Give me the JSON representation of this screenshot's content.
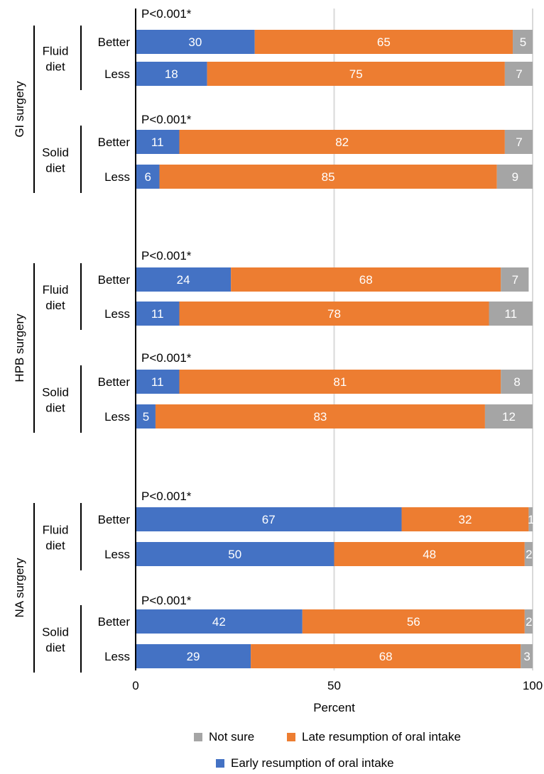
{
  "chart_data": {
    "type": "bar",
    "orientation": "horizontal",
    "stacked": true,
    "xlabel": "Percent",
    "xlim": [
      0,
      100
    ],
    "xticks": [
      "0",
      "50",
      "100"
    ],
    "grid": true,
    "legend_position": "bottom",
    "series": [
      {
        "key": "early",
        "name": "Early resumption of oral intake",
        "color": "#4472C4"
      },
      {
        "key": "late",
        "name": "Late resumption of oral intake",
        "color": "#ED7D31"
      },
      {
        "key": "notsure",
        "name": "Not sure",
        "color": "#A5A5A5"
      }
    ],
    "legend_rows": [
      [
        "notsure",
        "late"
      ],
      [
        "early"
      ]
    ],
    "groups": [
      {
        "label": "GI surgery",
        "subgroups": [
          {
            "label": [
              "Fluid",
              "diet"
            ],
            "pvalue": "P<0.001*",
            "bars": [
              {
                "label": "Better",
                "values": {
                  "early": 30,
                  "late": 65,
                  "notsure": 5
                }
              },
              {
                "label": "Less",
                "values": {
                  "early": 18,
                  "late": 75,
                  "notsure": 7
                }
              }
            ]
          },
          {
            "label": [
              "Solid",
              "diet"
            ],
            "pvalue": "P<0.001*",
            "bars": [
              {
                "label": "Better",
                "values": {
                  "early": 11,
                  "late": 82,
                  "notsure": 7
                }
              },
              {
                "label": "Less",
                "values": {
                  "early": 6,
                  "late": 85,
                  "notsure": 9
                }
              }
            ]
          }
        ]
      },
      {
        "label": "HPB surgery",
        "subgroups": [
          {
            "label": [
              "Fluid",
              "diet"
            ],
            "pvalue": "P<0.001*",
            "bars": [
              {
                "label": "Better",
                "values": {
                  "early": 24,
                  "late": 68,
                  "notsure": 7
                }
              },
              {
                "label": "Less",
                "values": {
                  "early": 11,
                  "late": 78,
                  "notsure": 11
                }
              }
            ]
          },
          {
            "label": [
              "Solid",
              "diet"
            ],
            "pvalue": "P<0.001*",
            "bars": [
              {
                "label": "Better",
                "values": {
                  "early": 11,
                  "late": 81,
                  "notsure": 8
                }
              },
              {
                "label": "Less",
                "values": {
                  "early": 5,
                  "late": 83,
                  "notsure": 12
                }
              }
            ]
          }
        ]
      },
      {
        "label": "NA surgery",
        "subgroups": [
          {
            "label": [
              "Fluid",
              "diet"
            ],
            "pvalue": "P<0.001*",
            "bars": [
              {
                "label": "Better",
                "values": {
                  "early": 67,
                  "late": 32,
                  "notsure": 1
                }
              },
              {
                "label": "Less",
                "values": {
                  "early": 50,
                  "late": 48,
                  "notsure": 2
                }
              }
            ]
          },
          {
            "label": [
              "Solid",
              "diet"
            ],
            "pvalue": "P<0.001*",
            "bars": [
              {
                "label": "Better",
                "values": {
                  "early": 42,
                  "late": 56,
                  "notsure": 2
                }
              },
              {
                "label": "Less",
                "values": {
                  "early": 29,
                  "late": 68,
                  "notsure": 3
                }
              }
            ]
          }
        ]
      }
    ]
  }
}
